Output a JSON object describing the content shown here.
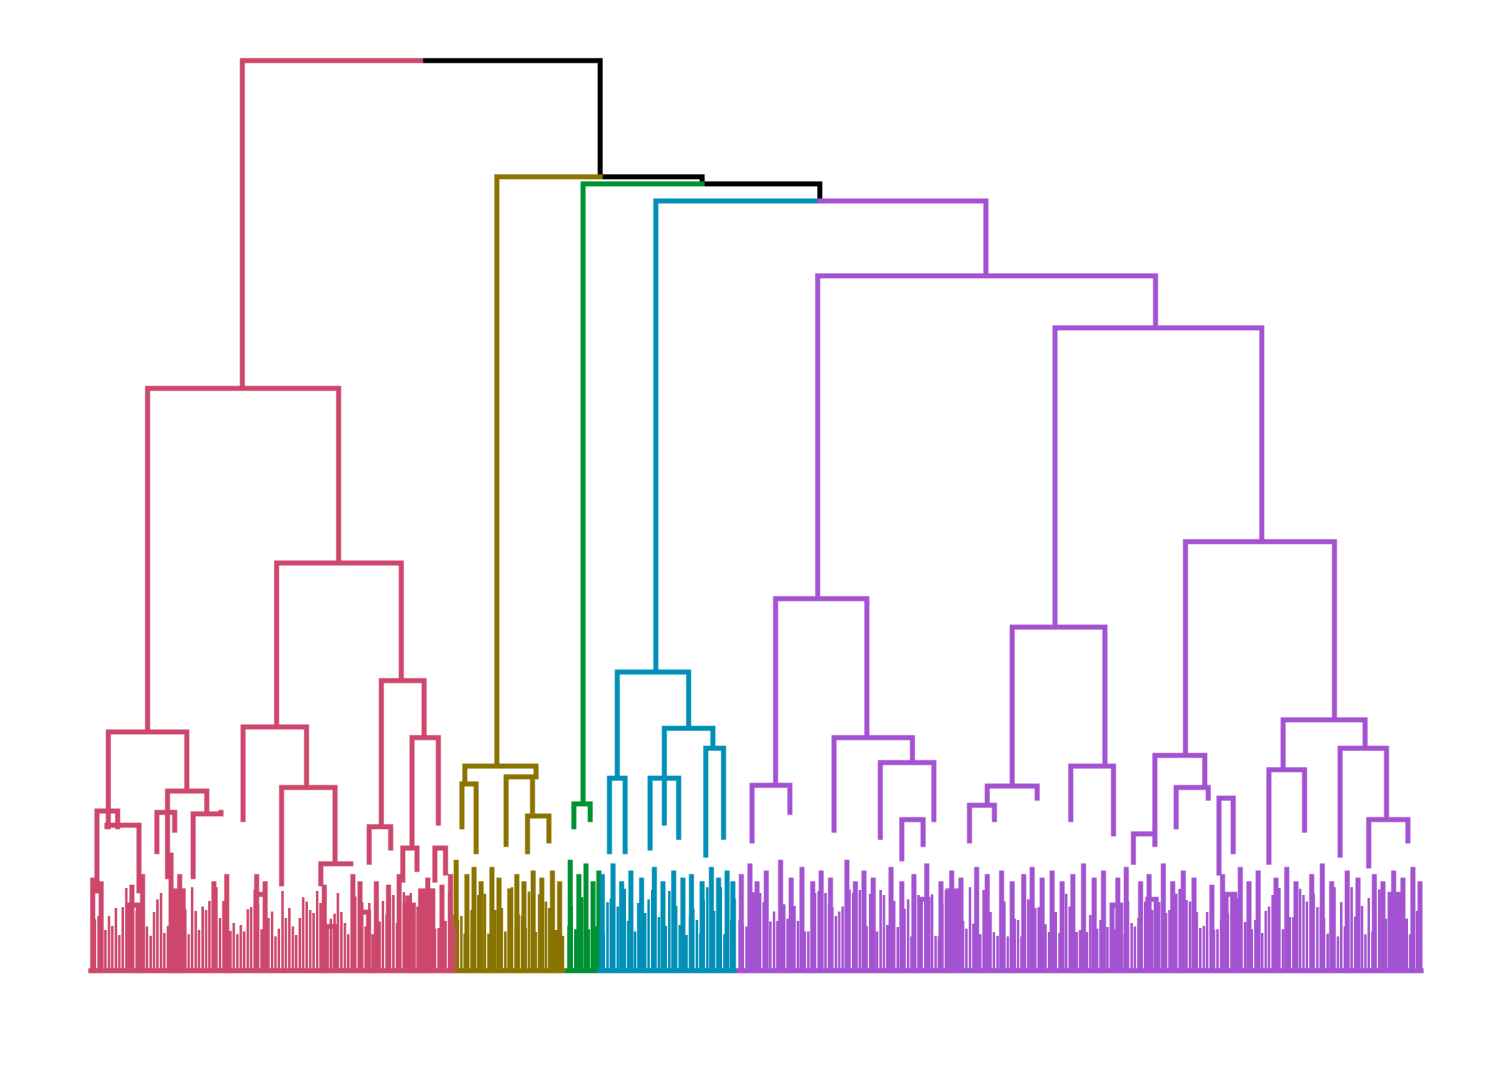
{
  "chart_data": {
    "type": "dendrogram",
    "title": "",
    "xlabel": "",
    "ylabel": "",
    "axes_visible": false,
    "grid": false,
    "legend": "none",
    "colors": {
      "root": "#000000",
      "cluster_1": "#CC476B",
      "cluster_2": "#8B7300",
      "cluster_3": "#009232",
      "cluster_4": "#008FB7",
      "cluster_5": "#A352D1"
    },
    "clusters": [
      {
        "id": "cluster_1",
        "leaf_count": 106,
        "merge_height": 1.0
      },
      {
        "id": "cluster_2",
        "leaf_count": 32,
        "merge_height": 0.87
      },
      {
        "id": "cluster_3",
        "leaf_count": 9,
        "merge_height": 0.86
      },
      {
        "id": "cluster_4",
        "leaf_count": 40,
        "merge_height": 0.84
      },
      {
        "id": "cluster_5",
        "leaf_count": 199,
        "merge_height": 0.84
      }
    ]
  }
}
